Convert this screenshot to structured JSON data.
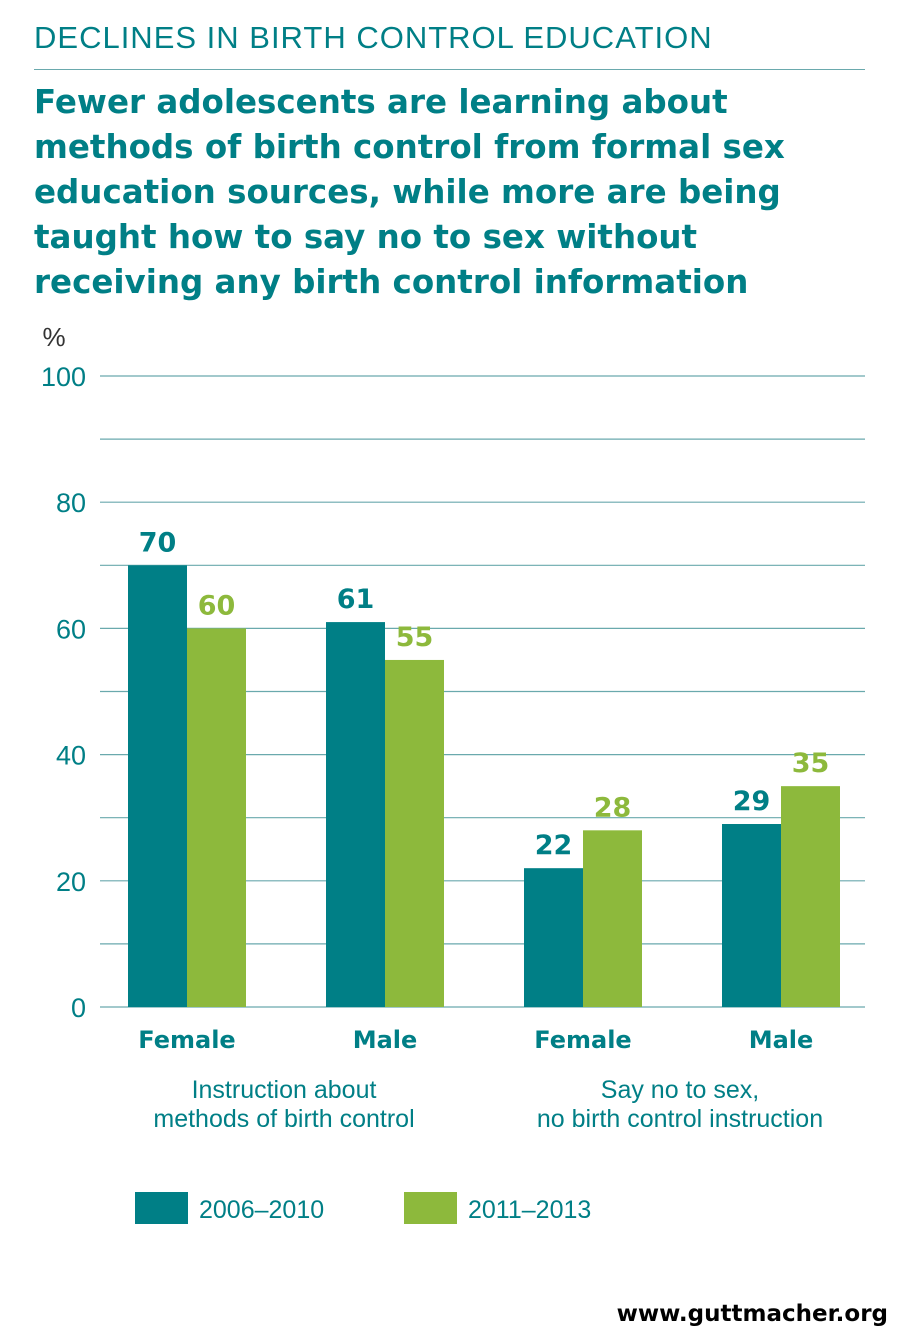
{
  "kicker": "DECLINES IN BIRTH CONTROL EDUCATION",
  "headline_lines": [
    "Fewer adolescents are learning about",
    "methods of birth control from formal sex",
    "education sources, while more are being",
    "taught how to say no to sex without",
    "receiving any birth control information"
  ],
  "footer": "www.guttmacher.org",
  "colors": {
    "series1": "#007f86",
    "series2": "#8db93c",
    "text": "#007f86",
    "grid": "#6aa9ad"
  },
  "chart_data": {
    "type": "bar",
    "ylabel": "%",
    "ylim": [
      0,
      100
    ],
    "yticks": [
      0,
      20,
      40,
      60,
      80,
      100
    ],
    "grid": true,
    "categories": [
      "Female",
      "Male",
      "Female",
      "Male"
    ],
    "groups": [
      {
        "label_lines": [
          "Instruction about",
          "methods of birth control"
        ]
      },
      {
        "label_lines": [
          "Say no to sex,",
          "no birth control instruction"
        ]
      }
    ],
    "series": [
      {
        "name": "2006–2010",
        "values": [
          70,
          61,
          22,
          29
        ]
      },
      {
        "name": "2011–2013",
        "values": [
          60,
          55,
          28,
          35
        ]
      }
    ],
    "legend_position": "bottom-left"
  }
}
